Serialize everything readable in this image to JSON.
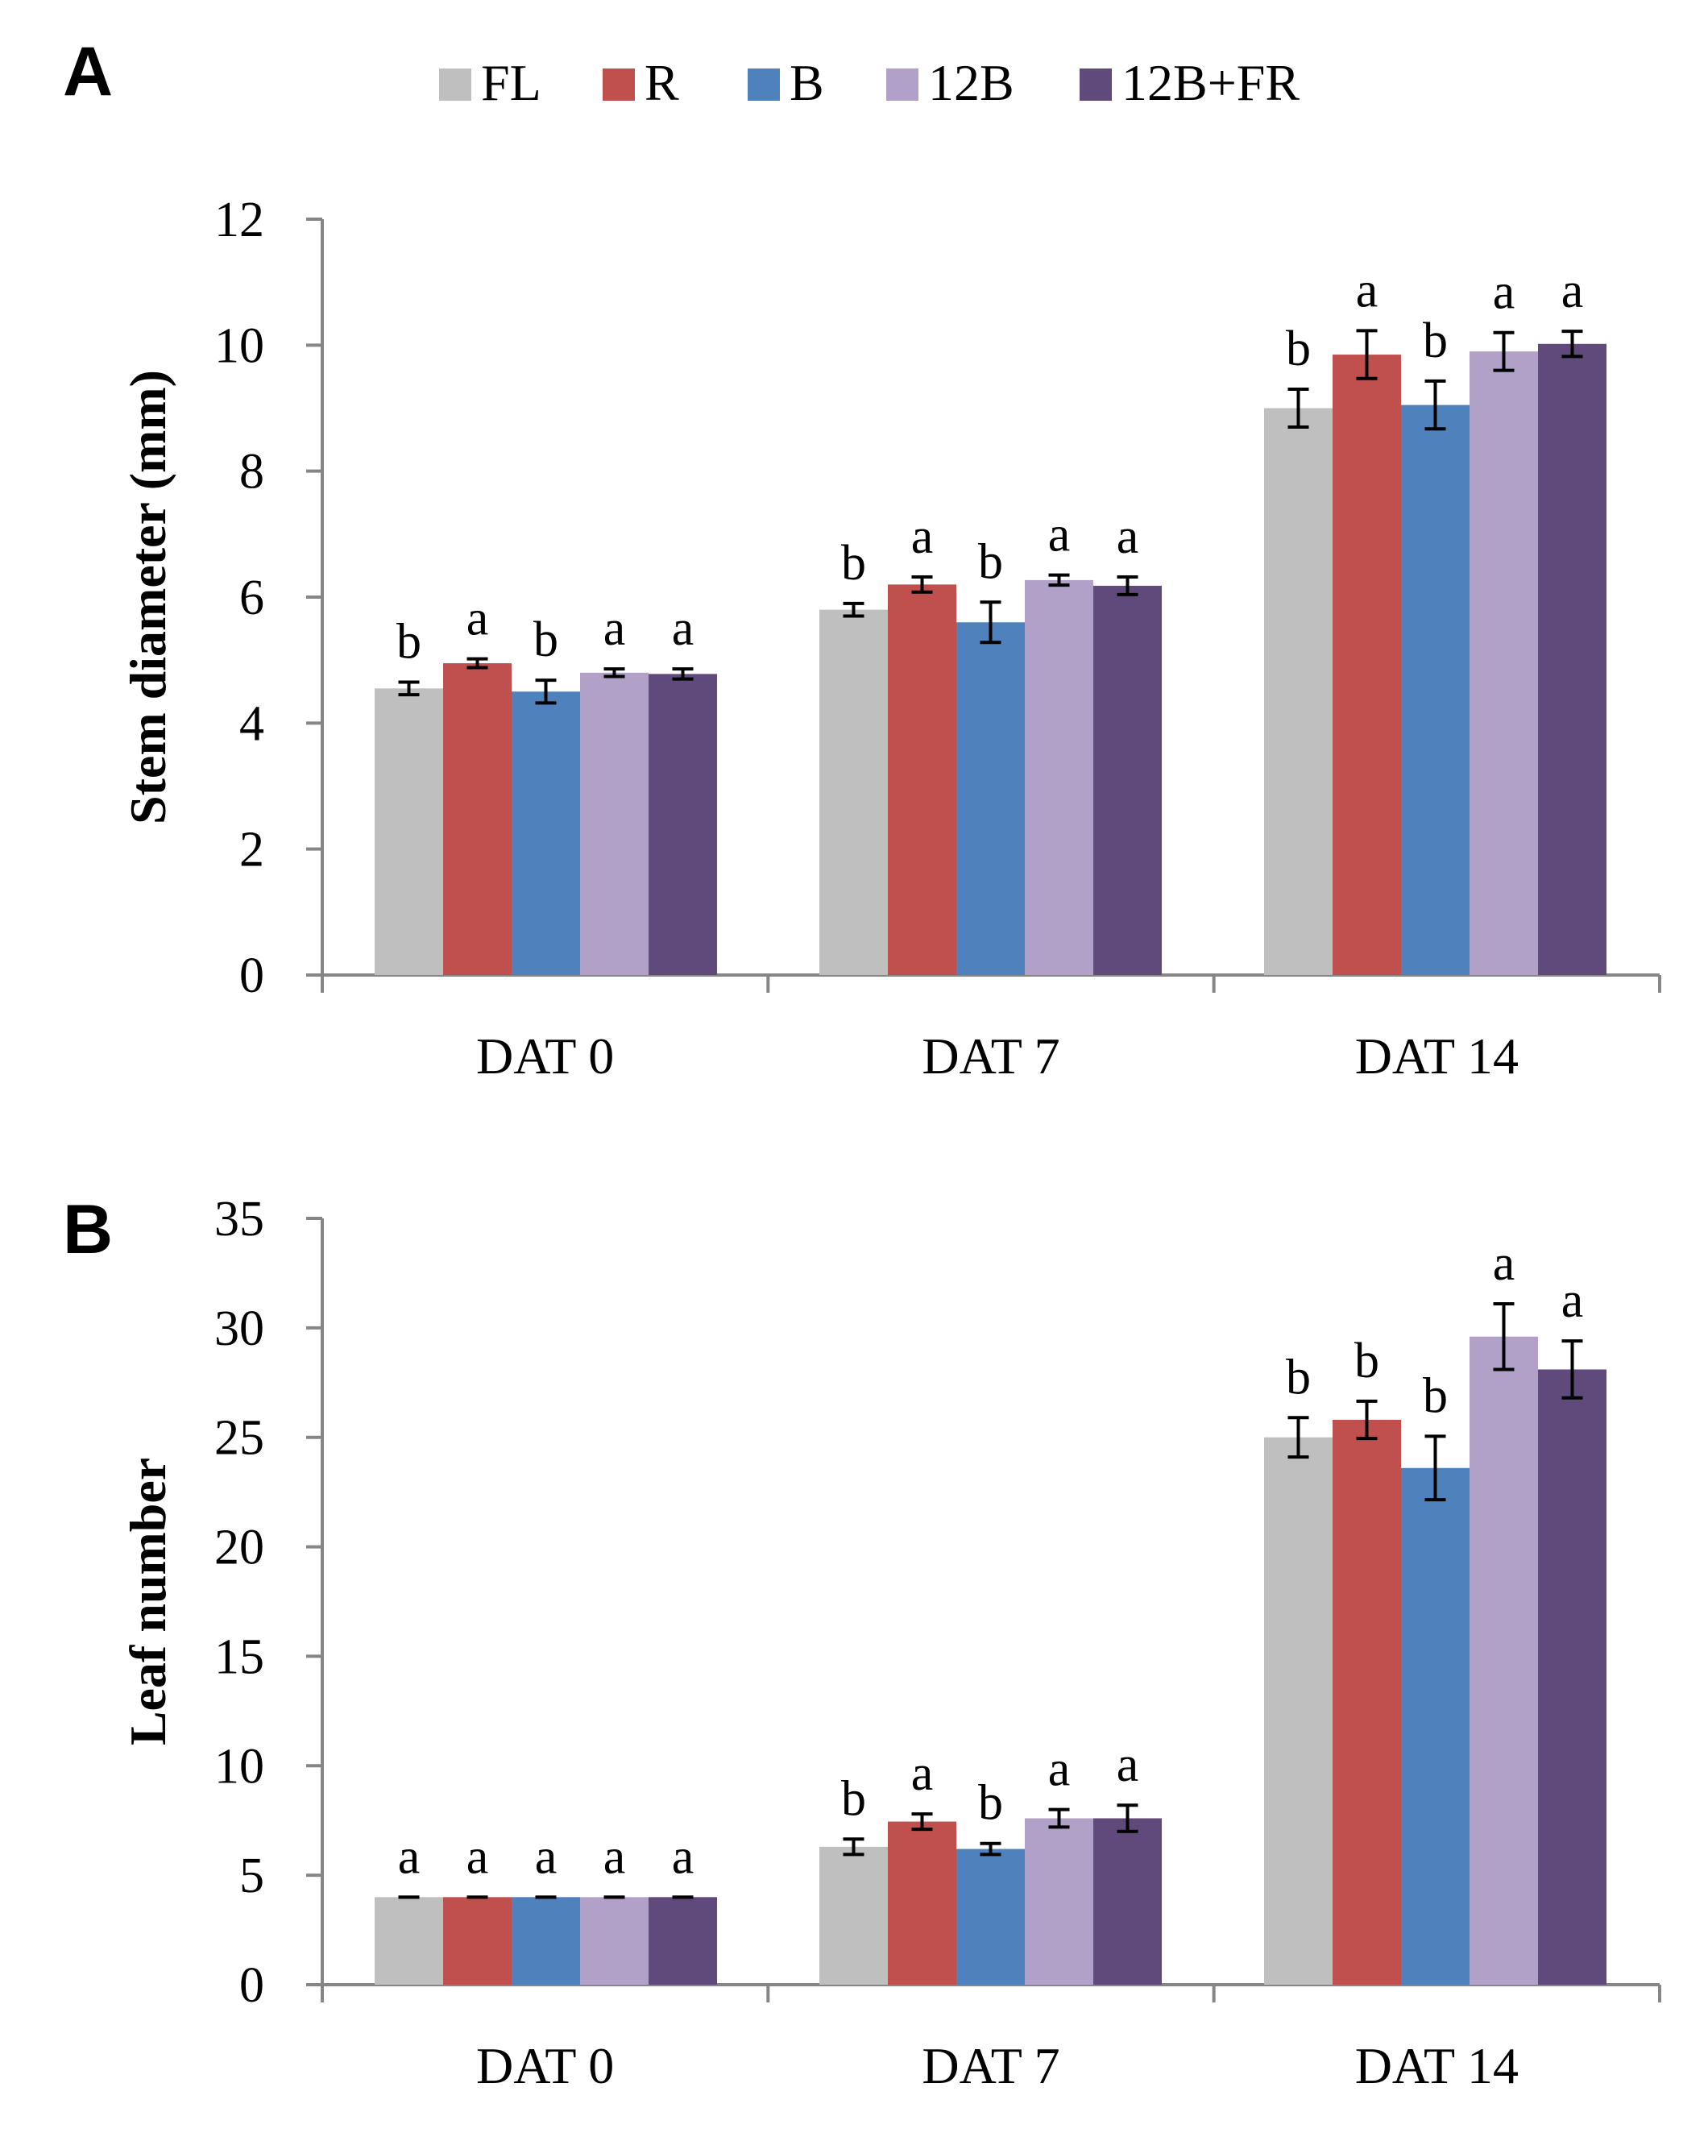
{
  "legend": [
    {
      "name": "FL",
      "color": "#BFBFBF"
    },
    {
      "name": "R",
      "color": "#C0504D"
    },
    {
      "name": "B",
      "color": "#4F81BD"
    },
    {
      "name": "12B",
      "color": "#B1A0C7"
    },
    {
      "name": "12B+FR",
      "color": "#604A7B"
    }
  ],
  "chart_data": [
    {
      "type": "bar",
      "panel_label": "A",
      "title": "",
      "xlabel": "",
      "ylabel": "Stem diameter (mm)",
      "ylim": [
        0,
        12
      ],
      "yticks": [
        0,
        2,
        4,
        6,
        8,
        10,
        12
      ],
      "ytick_labels": [
        "0",
        "2",
        "4",
        "6",
        "8",
        "10",
        "12"
      ],
      "grid": false,
      "legend_position": "top",
      "categories": [
        "DAT 0",
        "DAT 7",
        "DAT 14"
      ],
      "series": [
        {
          "name": "FL",
          "color": "#BFBFBF",
          "values": [
            4.55,
            5.8,
            9.0
          ],
          "errors": [
            0.1,
            0.1,
            0.3
          ],
          "letters": [
            "b",
            "b",
            "b"
          ]
        },
        {
          "name": "R",
          "color": "#C0504D",
          "values": [
            4.95,
            6.2,
            9.85
          ],
          "errors": [
            0.07,
            0.12,
            0.38
          ],
          "letters": [
            "a",
            "a",
            "a"
          ]
        },
        {
          "name": "B",
          "color": "#4F81BD",
          "values": [
            4.5,
            5.6,
            9.05
          ],
          "errors": [
            0.18,
            0.32,
            0.38
          ],
          "letters": [
            "b",
            "b",
            "b"
          ]
        },
        {
          "name": "12B",
          "color": "#B1A0C7",
          "values": [
            4.8,
            6.27,
            9.9
          ],
          "errors": [
            0.06,
            0.08,
            0.3
          ],
          "letters": [
            "a",
            "a",
            "a"
          ]
        },
        {
          "name": "12B+FR",
          "color": "#604A7B",
          "values": [
            4.78,
            6.18,
            10.02
          ],
          "errors": [
            0.08,
            0.14,
            0.2
          ],
          "letters": [
            "a",
            "a",
            "a"
          ]
        }
      ]
    },
    {
      "type": "bar",
      "panel_label": "B",
      "title": "",
      "xlabel": "",
      "ylabel": "Leaf number",
      "ylim": [
        0,
        35
      ],
      "yticks": [
        0,
        5,
        10,
        15,
        20,
        25,
        30,
        35
      ],
      "ytick_labels": [
        "0",
        "5",
        "10",
        "15",
        "20",
        "25",
        "30",
        "35"
      ],
      "grid": false,
      "legend_position": "none",
      "categories": [
        "DAT 0",
        "DAT 7",
        "DAT 14"
      ],
      "series": [
        {
          "name": "FL",
          "color": "#BFBFBF",
          "values": [
            4.0,
            6.3,
            25.0
          ],
          "errors": [
            0.0,
            0.35,
            0.9
          ],
          "letters": [
            "a",
            "b",
            "b"
          ]
        },
        {
          "name": "R",
          "color": "#C0504D",
          "values": [
            4.0,
            7.45,
            25.8
          ],
          "errors": [
            0.0,
            0.35,
            0.85
          ],
          "letters": [
            "a",
            "a",
            "b"
          ]
        },
        {
          "name": "B",
          "color": "#4F81BD",
          "values": [
            4.0,
            6.2,
            23.6
          ],
          "errors": [
            0.0,
            0.25,
            1.45
          ],
          "letters": [
            "a",
            "b",
            "b"
          ]
        },
        {
          "name": "12B",
          "color": "#B1A0C7",
          "values": [
            4.0,
            7.6,
            29.6
          ],
          "errors": [
            0.0,
            0.4,
            1.5
          ],
          "letters": [
            "a",
            "a",
            "a"
          ]
        },
        {
          "name": "12B+FR",
          "color": "#604A7B",
          "values": [
            4.0,
            7.6,
            28.1
          ],
          "errors": [
            0.0,
            0.6,
            1.3
          ],
          "letters": [
            "a",
            "a",
            "a"
          ]
        }
      ]
    }
  ]
}
